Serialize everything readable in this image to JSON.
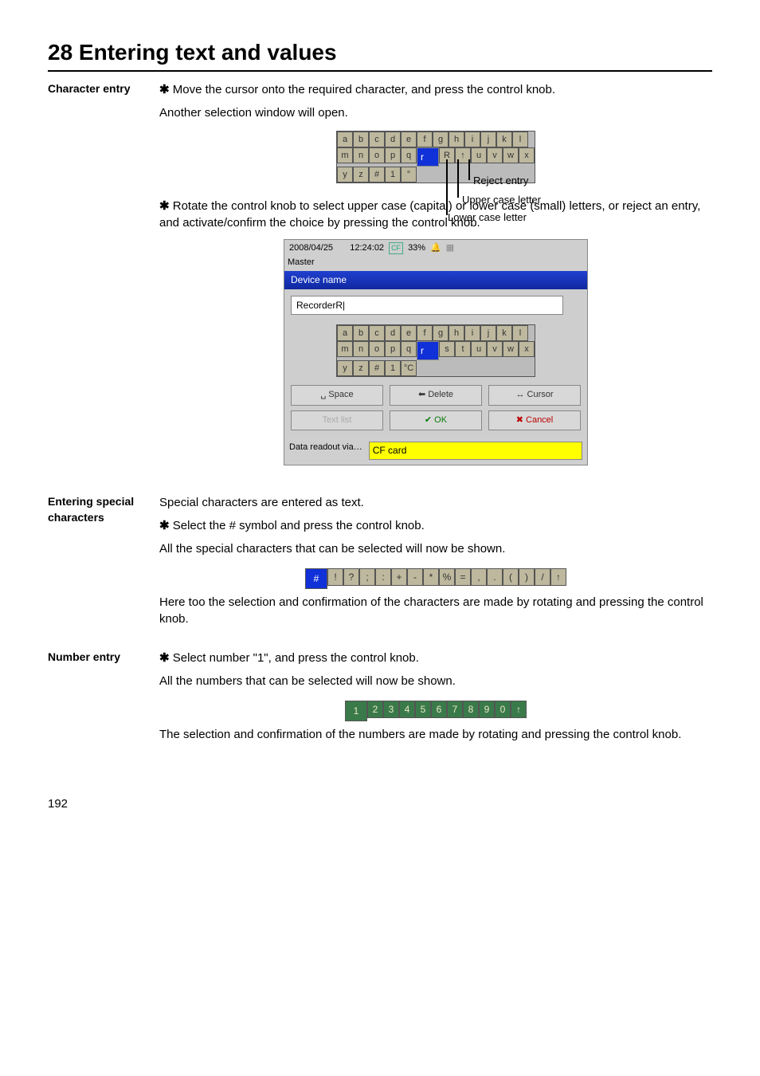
{
  "page": {
    "title": "28 Entering text and values",
    "number": "192"
  },
  "sections": {
    "char": {
      "label": "Character entry",
      "instr": "Move the cursor onto the required character, and press the control knob.",
      "note": "Another selection window will open.",
      "kb_rows": [
        [
          "a",
          "b",
          "c",
          "d",
          "e",
          "f",
          "g",
          "h",
          "i",
          "j",
          "k",
          "l"
        ],
        [
          "m",
          "n",
          "o",
          "p",
          "q",
          "r",
          "R",
          "↑",
          "u",
          "v",
          "w",
          "x"
        ],
        [
          "y",
          "z",
          "#",
          "1",
          "°",
          "",
          "",
          "",
          "",
          "",
          "",
          ""
        ]
      ],
      "kb_sel_row": 1,
      "kb_sel_col": 5,
      "callouts": {
        "reject": "Reject entry",
        "upper": "Upper case letter",
        "lower": "Lower case letter"
      },
      "instr2": "Rotate the control knob to select upper case (capital) or lower case (small) letters, or reject an entry, and activate/confirm the choice by pressing the control knob."
    },
    "dialog": {
      "date": "2008/04/25",
      "time": "12:24:02",
      "mode": "Master",
      "pct": "33%",
      "title": "Device name",
      "value": "RecorderR|",
      "kb_rows": [
        [
          "a",
          "b",
          "c",
          "d",
          "e",
          "f",
          "g",
          "h",
          "i",
          "j",
          "k",
          "l"
        ],
        [
          "m",
          "n",
          "o",
          "p",
          "q",
          "r",
          "s",
          "t",
          "u",
          "v",
          "w",
          "x"
        ],
        [
          "y",
          "z",
          "#",
          "1",
          "°C",
          "",
          "",
          "",
          "",
          "",
          "",
          ""
        ]
      ],
      "kb_sel_row": 1,
      "kb_sel_col": 5,
      "btns": {
        "space": "␣ Space",
        "delete": "⬅ Delete",
        "cursor": "↔ Cursor",
        "textlist": "Text list",
        "ok": "✔ OK",
        "cancel": "✖ Cancel"
      },
      "footer_label": "Data readout via…",
      "footer_value": "CF card"
    },
    "special": {
      "label": "Entering special characters",
      "p1": "Special characters are entered as text.",
      "instr": "Select the # symbol and press the control knob.",
      "p2": "All the special characters that can be selected will now be shown.",
      "strip": [
        "#",
        "!",
        "?",
        ";",
        ":",
        "+",
        "-",
        "*",
        "%",
        "=",
        ",",
        ".",
        "(",
        ")",
        "/",
        "↑"
      ],
      "sel": 0,
      "p3": "Here too the selection and confirmation of the characters are made by rotating and pressing the control knob."
    },
    "number": {
      "label": "Number entry",
      "instr": "Select number \"1\", and press the control knob.",
      "p1": "All the numbers that can be selected will now be shown.",
      "strip": [
        "1",
        "2",
        "3",
        "4",
        "5",
        "6",
        "7",
        "8",
        "9",
        "0",
        "↑"
      ],
      "sel": 0,
      "p2": "The selection and confirmation of the numbers are made by rotating and pressing the control knob."
    }
  },
  "colors": {
    "page_bg": "#ffffff",
    "key_bg": "#bdb89e",
    "key_sel": "#1030d8",
    "num_bg": "#3a7a4a"
  }
}
